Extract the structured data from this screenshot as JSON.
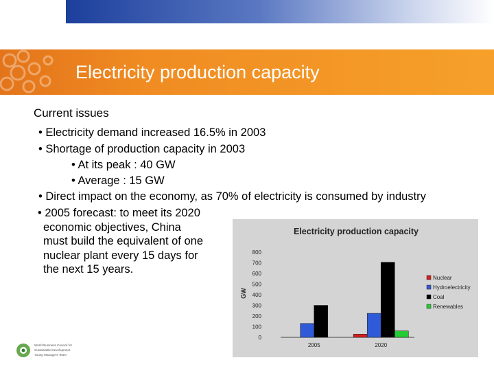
{
  "slide": {
    "title": "Electricity production capacity",
    "section": "Current issues",
    "bullets": [
      "• Electricity demand increased 16.5% in 2003",
      "• Shortage of production capacity in 2003",
      "• At its peak : 40 GW",
      "• Average : 15 GW",
      "• Direct impact on the economy, as 70% of electricity is consumed by industry"
    ],
    "forecast_lines": [
      "• 2005 forecast: to meet its 2020",
      "economic objectives, China",
      "must build the equivalent of one",
      "nuclear plant every 15 days for",
      "the next 15 years."
    ],
    "logo_lines": [
      "World Business Council for",
      "Sustainable Development",
      "Young Managers Team"
    ]
  },
  "colors": {
    "title_bar": "#f08c22",
    "nuclear": "#d81e1e",
    "hydroelectricity": "#2f5bd9",
    "coal": "#000000",
    "renewables": "#22cc33"
  },
  "chart_data": {
    "type": "bar",
    "title": "Electricity production capacity",
    "ylabel": "GW",
    "xlabel": "",
    "categories": [
      "2005",
      "2020"
    ],
    "series": [
      {
        "name": "Nuclear",
        "color": "#d81e1e",
        "values": [
          0,
          30
        ]
      },
      {
        "name": "Hydroelectricity",
        "color": "#2f5bd9",
        "values": [
          130,
          225
        ]
      },
      {
        "name": "Coal",
        "color": "#000000",
        "values": [
          300,
          705
        ]
      },
      {
        "name": "Renewables",
        "color": "#22cc33",
        "values": [
          0,
          60
        ]
      }
    ],
    "ylim": [
      0,
      800
    ],
    "yticks": [
      0,
      100,
      200,
      300,
      400,
      500,
      600,
      700,
      800
    ],
    "legend_position": "right",
    "grid": false
  }
}
